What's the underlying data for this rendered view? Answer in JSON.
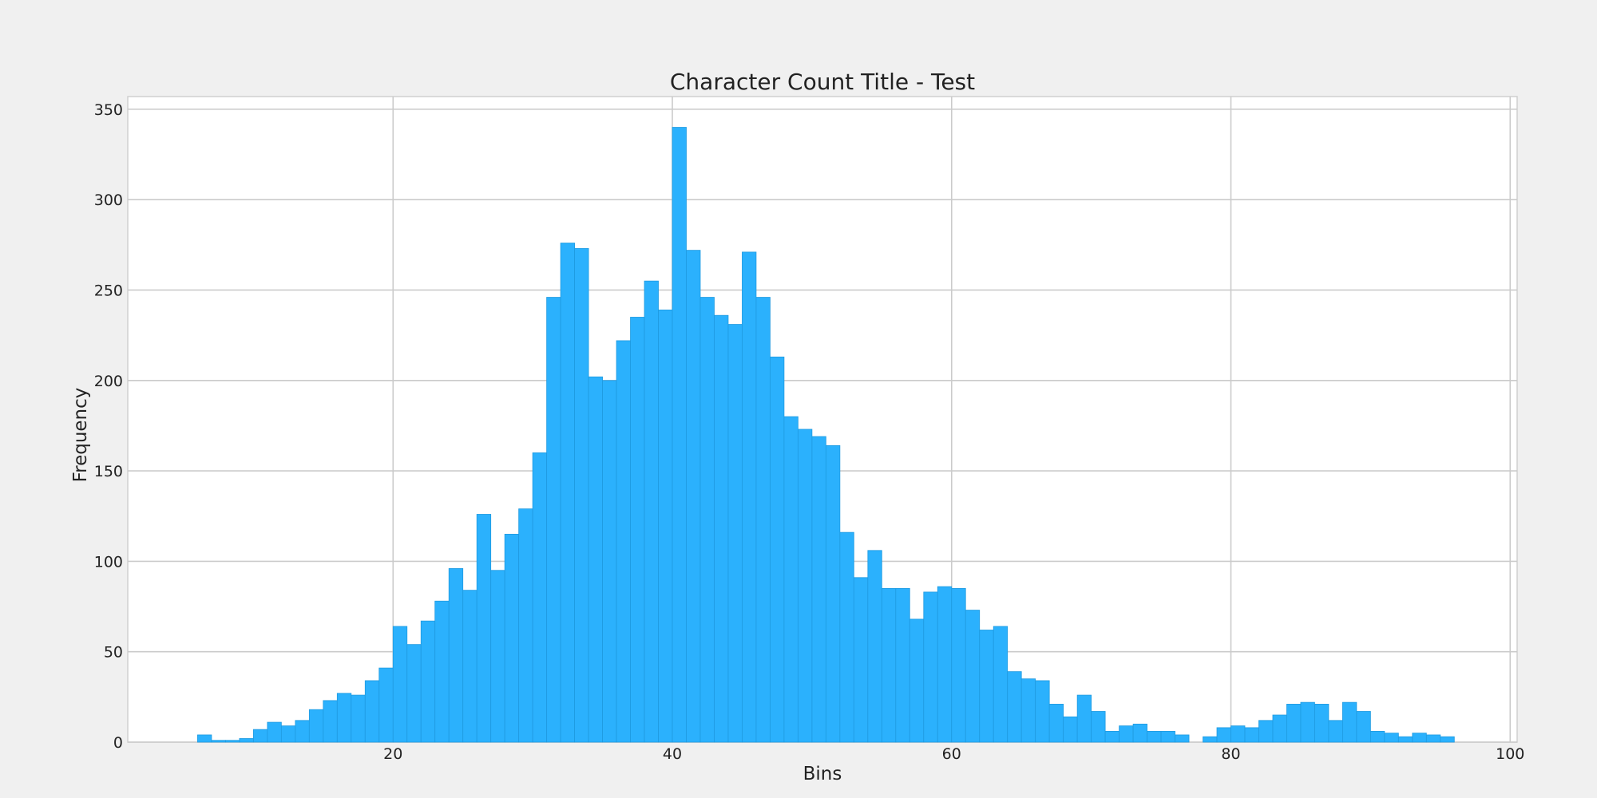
{
  "chart_data": {
    "type": "bar",
    "title": "Character Count Title - Test",
    "xlabel": "Bins",
    "ylabel": "Frequency",
    "xlim": [
      1,
      100.5
    ],
    "ylim": [
      0,
      357
    ],
    "x_ticks": [
      20,
      40,
      60,
      80,
      100
    ],
    "y_ticks": [
      0,
      50,
      100,
      150,
      200,
      250,
      300,
      350
    ],
    "grid": true,
    "bin_start": 6,
    "bin_width": 1,
    "values": [
      4,
      1,
      1,
      2,
      7,
      11,
      9,
      12,
      18,
      23,
      27,
      26,
      34,
      41,
      64,
      54,
      67,
      78,
      96,
      84,
      126,
      95,
      115,
      129,
      160,
      246,
      276,
      273,
      202,
      200,
      222,
      235,
      255,
      239,
      340,
      272,
      246,
      236,
      231,
      271,
      246,
      213,
      180,
      173,
      169,
      164,
      116,
      91,
      106,
      85,
      85,
      68,
      83,
      86,
      85,
      73,
      62,
      64,
      39,
      35,
      34,
      21,
      14,
      26,
      17,
      6,
      9,
      10,
      6,
      6,
      4,
      0,
      3,
      8,
      9,
      8,
      12,
      15,
      21,
      22,
      21,
      12,
      22,
      17,
      6,
      5,
      3,
      5,
      4,
      3
    ],
    "colors": {
      "bar": "#2bb1fd",
      "bar_edge": "#1f9ae0",
      "plot_background": "#ffffff",
      "figure_background": "#f0f0f0",
      "grid": "#cbcbcb"
    }
  }
}
